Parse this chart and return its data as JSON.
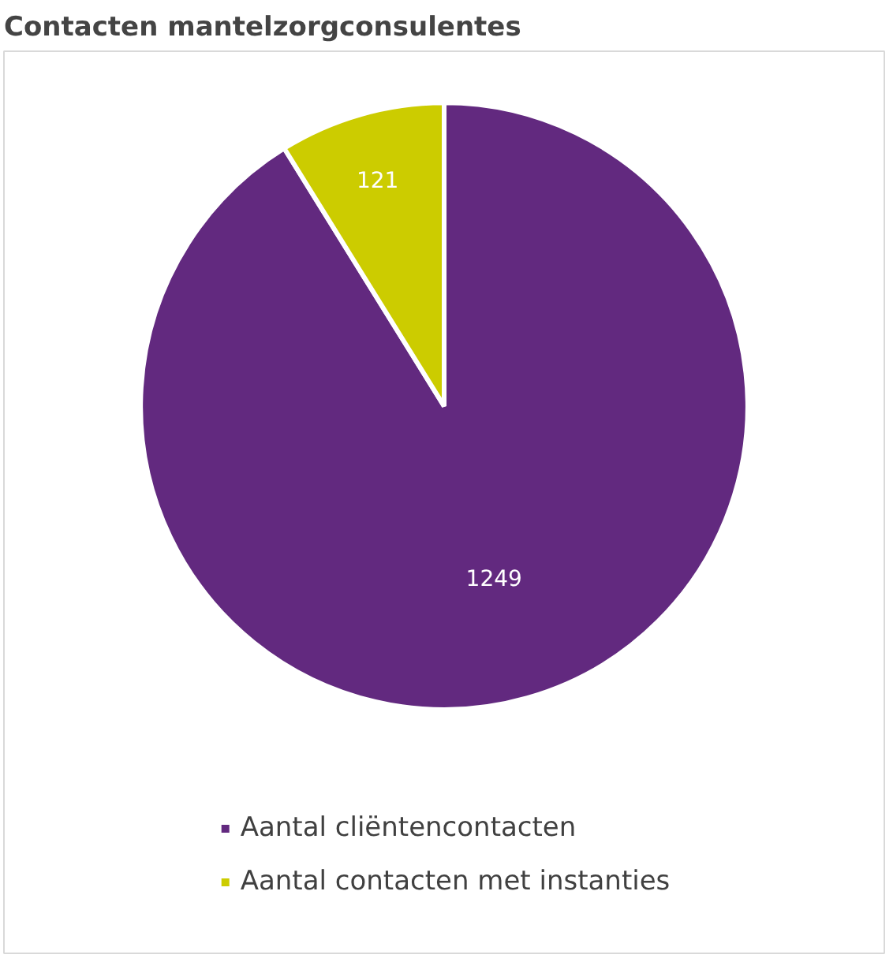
{
  "chart_data": {
    "type": "pie",
    "title": "Contacten mantelzorgconsulentes",
    "categories": [
      "Aantal cliëntencontacten",
      "Aantal contacten met instanties"
    ],
    "values": [
      1249,
      121
    ],
    "colors": [
      "#62297f",
      "#cccc00"
    ],
    "data_labels": true,
    "legend": "bottom"
  }
}
